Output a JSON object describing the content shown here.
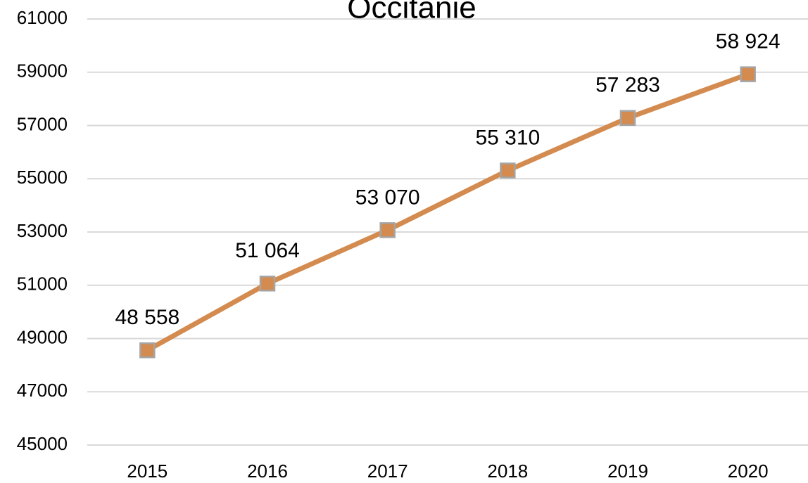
{
  "chart_data": {
    "type": "line",
    "title": "Occitanie",
    "categories": [
      "2015",
      "2016",
      "2017",
      "2018",
      "2019",
      "2020"
    ],
    "values": [
      48558,
      51064,
      53070,
      55310,
      57283,
      58924
    ],
    "value_labels": [
      "48 558",
      "51 064",
      "53 070",
      "55 310",
      "57 283",
      "58 924"
    ],
    "color": "#d38b4f",
    "ylim": [
      45000,
      61000
    ],
    "yticks": [
      45000,
      47000,
      49000,
      51000,
      53000,
      55000,
      57000,
      59000,
      61000
    ],
    "grid": true
  }
}
